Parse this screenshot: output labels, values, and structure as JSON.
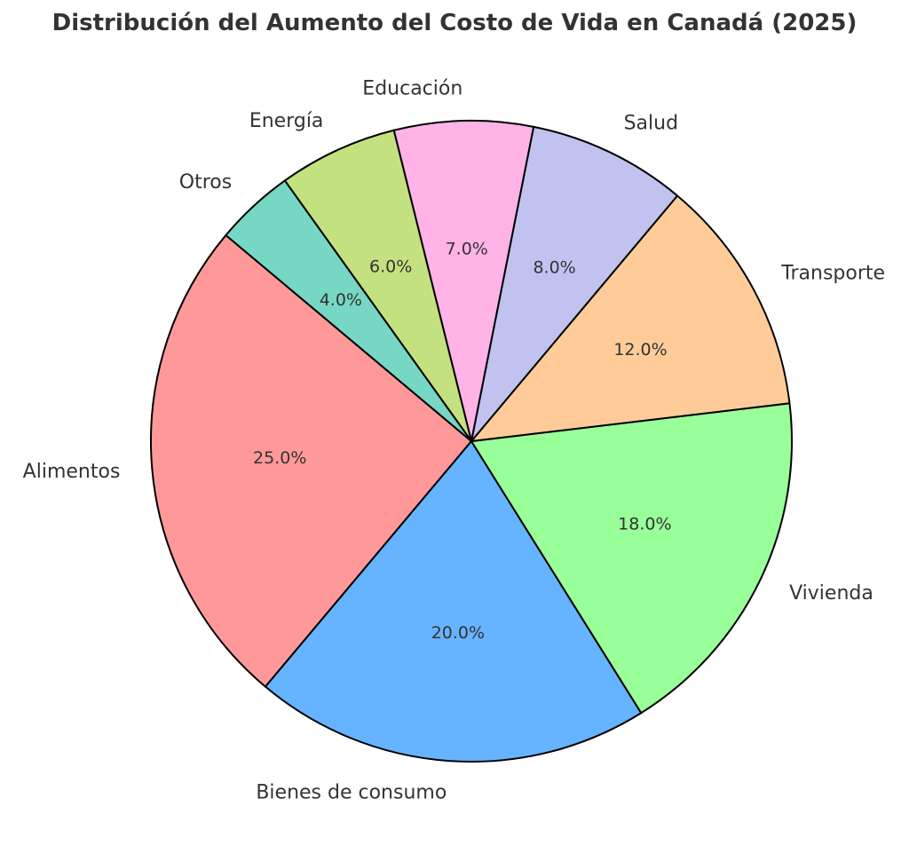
{
  "chart_data": {
    "type": "pie",
    "title": "Distribución del Aumento del Costo de Vida en Canadá (2025)",
    "slices": [
      {
        "label": "Alimentos",
        "value": 25.0,
        "pct_label": "25.0%",
        "color": "#ff9999"
      },
      {
        "label": "Bienes de consumo",
        "value": 20.0,
        "pct_label": "20.0%",
        "color": "#66b3ff"
      },
      {
        "label": "Vivienda",
        "value": 18.0,
        "pct_label": "18.0%",
        "color": "#99ff99"
      },
      {
        "label": "Transporte",
        "value": 12.0,
        "pct_label": "12.0%",
        "color": "#ffcc99"
      },
      {
        "label": "Salud",
        "value": 8.0,
        "pct_label": "8.0%",
        "color": "#c2c2f0"
      },
      {
        "label": "Educación",
        "value": 7.0,
        "pct_label": "7.0%",
        "color": "#ffb3e6"
      },
      {
        "label": "Energía",
        "value": 6.0,
        "pct_label": "6.0%",
        "color": "#c4e17f"
      },
      {
        "label": "Otros",
        "value": 4.0,
        "pct_label": "4.0%",
        "color": "#76d7c4"
      }
    ],
    "start_angle_deg": 140,
    "direction": "counterclockwise"
  }
}
